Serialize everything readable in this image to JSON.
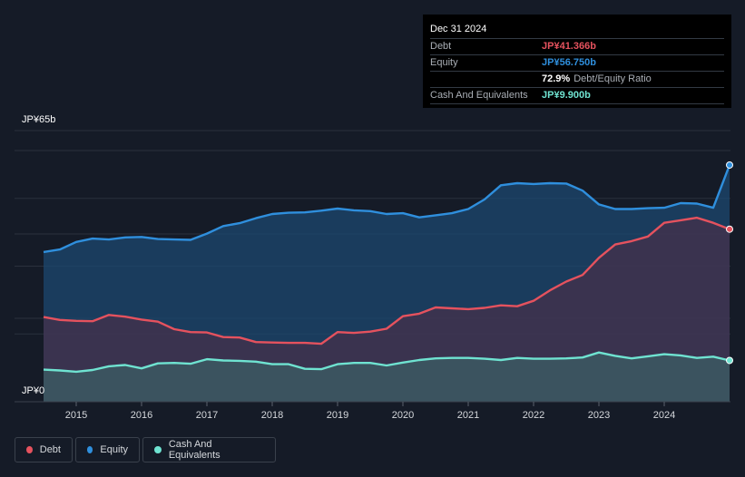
{
  "tooltip": {
    "date": "Dec 31 2024",
    "rows": [
      {
        "label": "Debt",
        "value": "JP¥41.366b",
        "color": "#e5525e"
      },
      {
        "label": "Equity",
        "value": "JP¥56.750b",
        "color": "#2f8fdd"
      },
      {
        "label": "",
        "value": "72.9%",
        "extra": "Debt/Equity Ratio",
        "color": "#ffffff"
      },
      {
        "label": "Cash And Equivalents",
        "value": "JP¥9.900b",
        "color": "#6fe3d1"
      }
    ]
  },
  "legend": [
    {
      "label": "Debt",
      "color": "#e5525e"
    },
    {
      "label": "Equity",
      "color": "#2f8fdd"
    },
    {
      "label": "Cash And Equivalents",
      "color": "#6fe3d1"
    }
  ],
  "chart_data": {
    "type": "area",
    "ytick_labels": [
      "JP¥65b",
      "JP¥0"
    ],
    "ylim": [
      0,
      65
    ],
    "xlim": [
      2014.5,
      2025.0
    ],
    "xticks": [
      2015,
      2016,
      2017,
      2018,
      2019,
      2020,
      2021,
      2022,
      2023,
      2024
    ],
    "xtick_labels": [
      "2015",
      "2016",
      "2017",
      "2018",
      "2019",
      "2020",
      "2021",
      "2022",
      "2023",
      "2024"
    ],
    "grid": true,
    "legend_position": "bottom-left",
    "series": [
      {
        "name": "Equity",
        "color": "#2f8fdd",
        "x": [
          2014.5,
          2014.75,
          2015.0,
          2015.25,
          2015.5,
          2015.75,
          2016.0,
          2016.25,
          2016.5,
          2016.75,
          2017.0,
          2017.25,
          2017.5,
          2017.75,
          2018.0,
          2018.25,
          2018.5,
          2018.75,
          2019.0,
          2019.25,
          2019.5,
          2019.75,
          2020.0,
          2020.25,
          2020.5,
          2020.75,
          2021.0,
          2021.25,
          2021.5,
          2021.75,
          2022.0,
          2022.25,
          2022.5,
          2022.75,
          2023.0,
          2023.25,
          2023.5,
          2023.75,
          2024.0,
          2024.25,
          2024.5,
          2024.75,
          2025.0
        ],
        "values": [
          35.9,
          36.5,
          38.3,
          39.1,
          38.9,
          39.4,
          39.5,
          39.0,
          38.9,
          38.8,
          40.3,
          42.1,
          42.8,
          44.0,
          45.0,
          45.3,
          45.4,
          45.8,
          46.3,
          45.9,
          45.7,
          45.0,
          45.2,
          44.2,
          44.7,
          45.2,
          46.2,
          48.5,
          51.9,
          52.4,
          52.2,
          52.4,
          52.3,
          50.6,
          47.3,
          46.2,
          46.2,
          46.4,
          46.5,
          47.6,
          47.5,
          46.5,
          56.75
        ]
      },
      {
        "name": "Debt",
        "color": "#e5525e",
        "x": [
          2014.5,
          2014.75,
          2015.0,
          2015.25,
          2015.5,
          2015.75,
          2016.0,
          2016.25,
          2016.5,
          2016.75,
          2017.0,
          2017.25,
          2017.5,
          2017.75,
          2018.0,
          2018.25,
          2018.5,
          2018.75,
          2019.0,
          2019.25,
          2019.5,
          2019.75,
          2020.0,
          2020.25,
          2020.5,
          2020.75,
          2021.0,
          2021.25,
          2021.5,
          2021.75,
          2022.0,
          2022.25,
          2022.5,
          2022.75,
          2023.0,
          2023.25,
          2023.5,
          2023.75,
          2024.0,
          2024.25,
          2024.5,
          2024.75,
          2025.0
        ],
        "values": [
          20.3,
          19.6,
          19.4,
          19.3,
          20.8,
          20.4,
          19.7,
          19.2,
          17.4,
          16.7,
          16.6,
          15.5,
          15.4,
          14.3,
          14.2,
          14.1,
          14.1,
          13.9,
          16.7,
          16.5,
          16.8,
          17.5,
          20.5,
          21.1,
          22.6,
          22.4,
          22.2,
          22.5,
          23.1,
          22.9,
          24.2,
          26.7,
          28.8,
          30.4,
          34.5,
          37.7,
          38.5,
          39.6,
          42.9,
          43.5,
          44.1,
          42.9,
          41.366
        ]
      },
      {
        "name": "Cash And Equivalents",
        "color": "#6fe3d1",
        "x": [
          2014.5,
          2014.75,
          2015.0,
          2015.25,
          2015.5,
          2015.75,
          2016.0,
          2016.25,
          2016.5,
          2016.75,
          2017.0,
          2017.25,
          2017.5,
          2017.75,
          2018.0,
          2018.25,
          2018.5,
          2018.75,
          2019.0,
          2019.25,
          2019.5,
          2019.75,
          2020.0,
          2020.25,
          2020.5,
          2020.75,
          2021.0,
          2021.25,
          2021.5,
          2021.75,
          2022.0,
          2022.25,
          2022.5,
          2022.75,
          2023.0,
          2023.25,
          2023.5,
          2023.75,
          2024.0,
          2024.25,
          2024.5,
          2024.75,
          2025.0
        ],
        "values": [
          7.7,
          7.5,
          7.2,
          7.6,
          8.5,
          8.8,
          8.0,
          9.2,
          9.3,
          9.1,
          10.2,
          9.9,
          9.8,
          9.6,
          9.0,
          9.0,
          7.9,
          7.8,
          9.0,
          9.3,
          9.3,
          8.7,
          9.4,
          10.0,
          10.4,
          10.5,
          10.5,
          10.3,
          10.0,
          10.5,
          10.3,
          10.3,
          10.4,
          10.6,
          11.8,
          11.0,
          10.4,
          10.9,
          11.4,
          11.1,
          10.5,
          10.8,
          9.9
        ]
      }
    ]
  }
}
